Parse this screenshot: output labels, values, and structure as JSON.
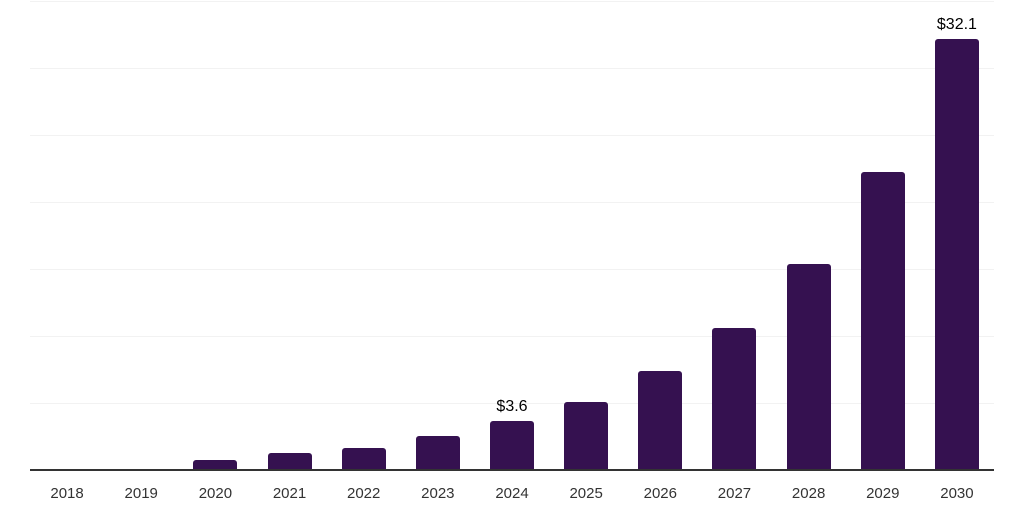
{
  "chart_data": {
    "type": "bar",
    "title": "",
    "xlabel": "",
    "ylabel": "",
    "categories": [
      "2018",
      "2019",
      "2020",
      "2021",
      "2022",
      "2023",
      "2024",
      "2025",
      "2026",
      "2027",
      "2028",
      "2029",
      "2030"
    ],
    "values": [
      0,
      0,
      0.7,
      1.2,
      1.6,
      2.5,
      3.6,
      5.0,
      7.3,
      10.5,
      15.3,
      22.2,
      32.1
    ],
    "data_labels": [
      "",
      "",
      "",
      "",
      "",
      "",
      "$3.6",
      "",
      "",
      "",
      "",
      "",
      "$32.1"
    ],
    "ylim": [
      0,
      35
    ],
    "gridline_step": 5,
    "grid": "horizontal",
    "legend": "none",
    "y_tick_labels_visible": false,
    "colors": {
      "bar": "#351150",
      "data_label": "#000000",
      "tick_label": "#333333",
      "gridline": "#f2f2f2",
      "axis_line": "#333333",
      "background": "#ffffff"
    }
  }
}
